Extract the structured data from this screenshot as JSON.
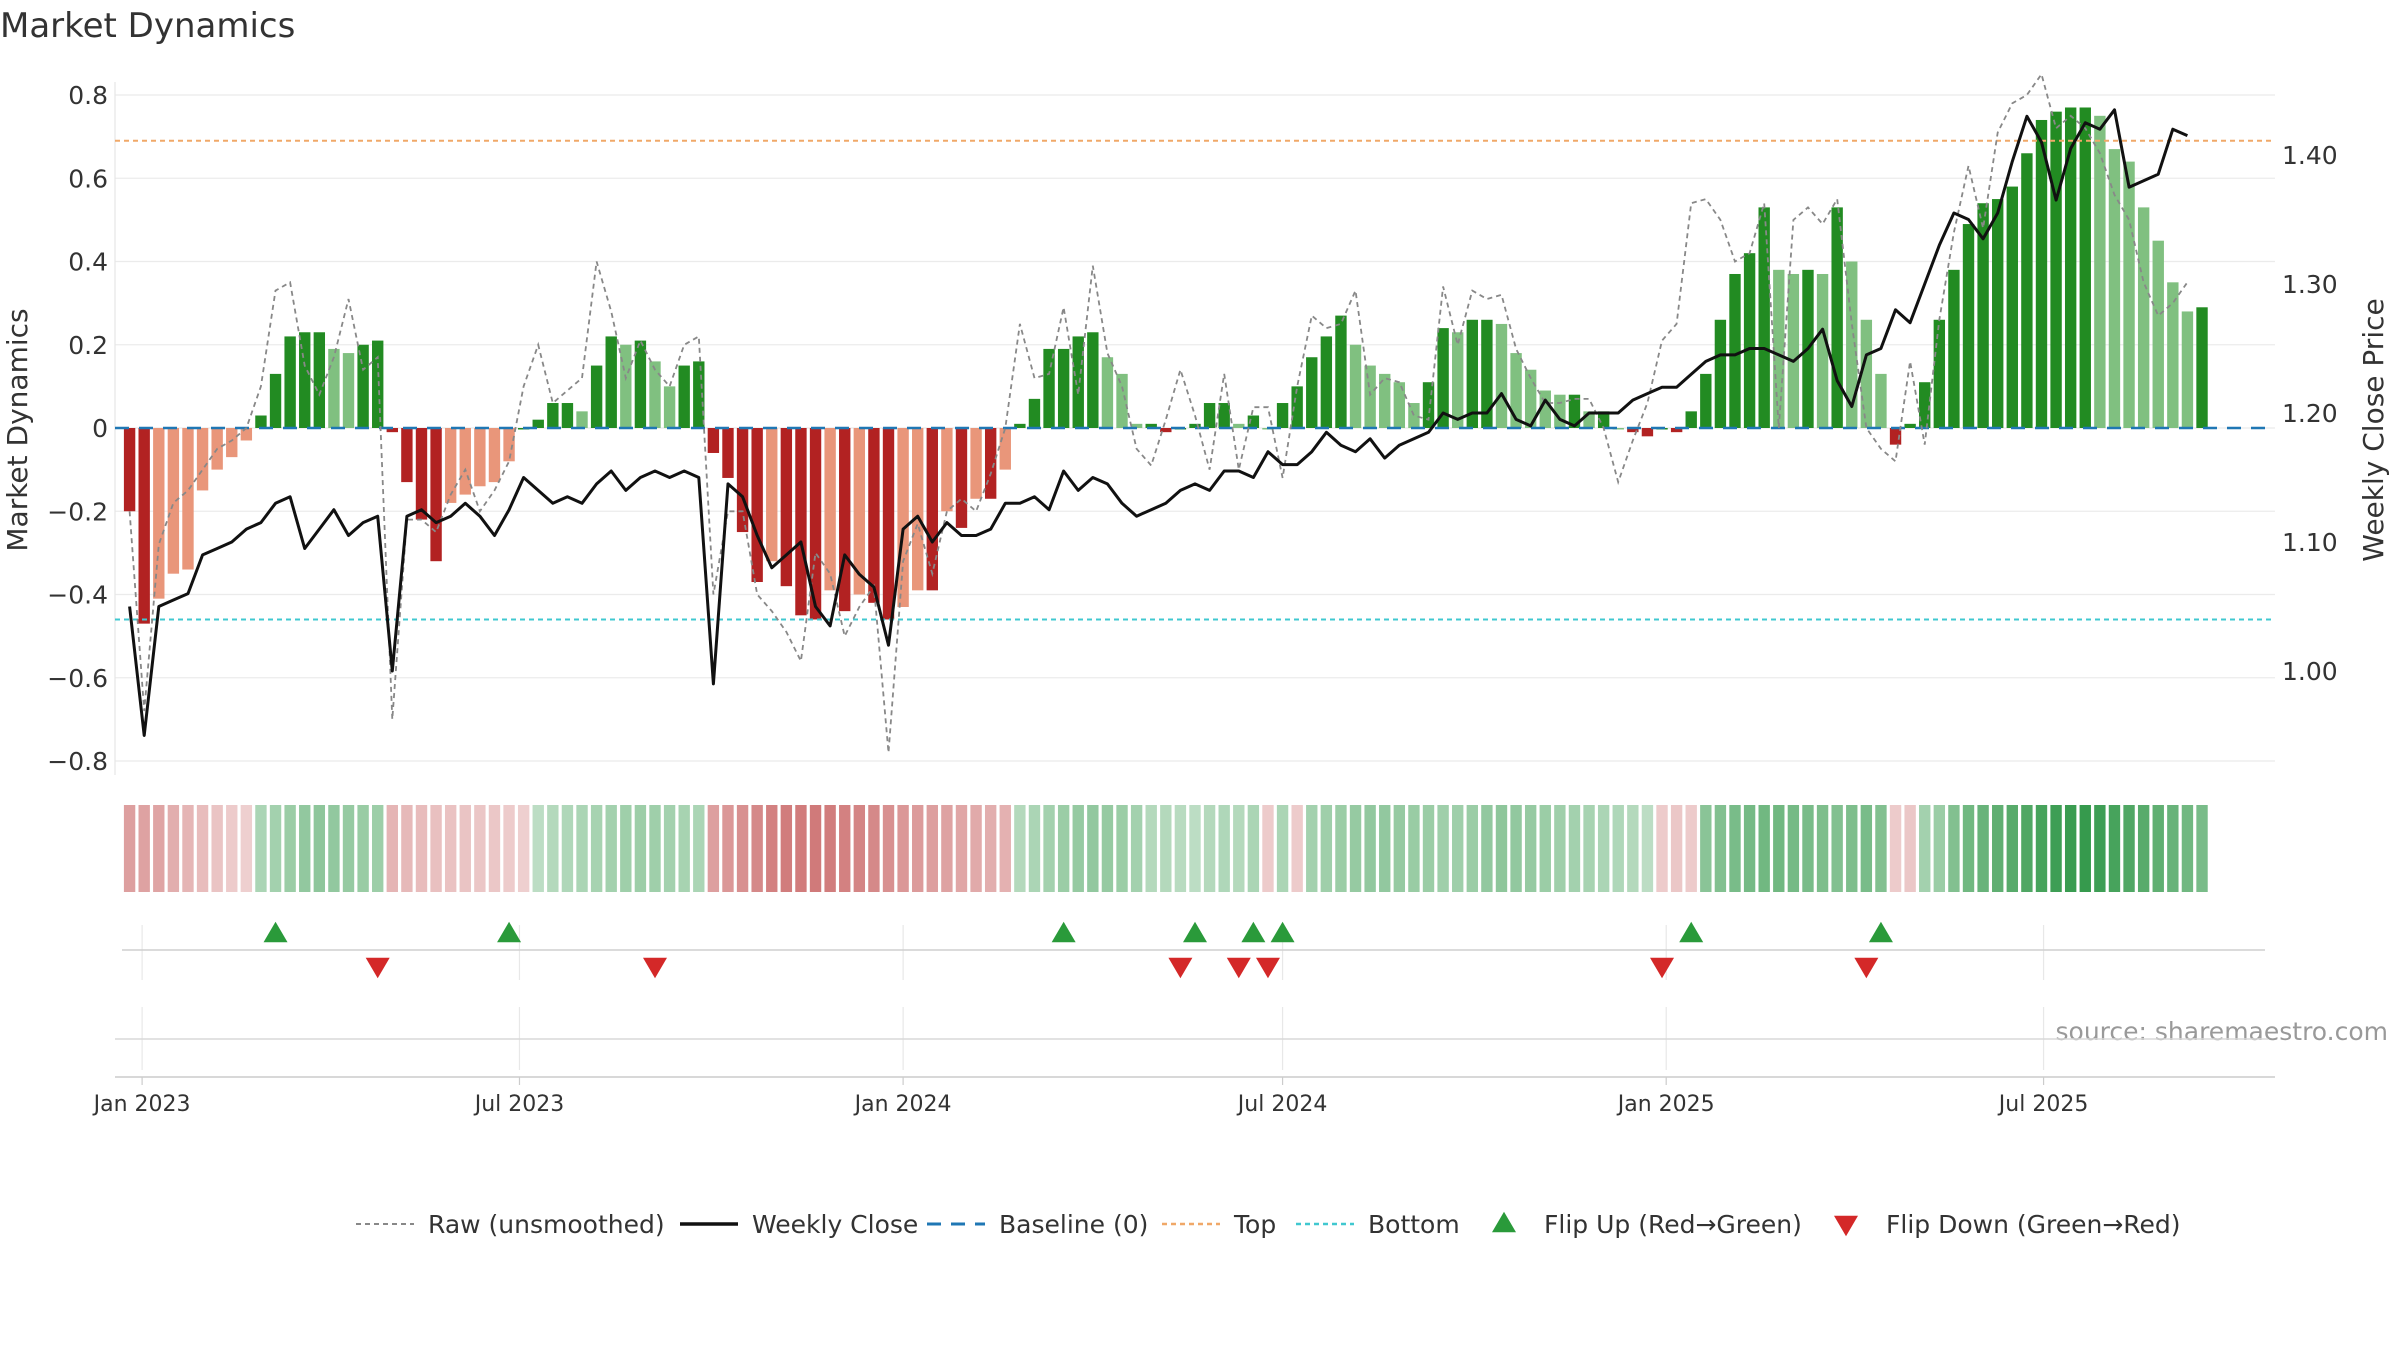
{
  "chart_data": {
    "type": "bar",
    "title": "Market Dynamics",
    "ylabel": "Market Dynamics",
    "ylabel_right": "Weekly Close Price",
    "ylim": [
      -0.8,
      0.8
    ],
    "ylim_right": [
      0.93,
      1.47
    ],
    "yticks": [
      "0.8",
      "0.6",
      "0.4",
      "0.2",
      "0",
      "−0.2",
      "−0.4",
      "−0.6",
      "−0.8"
    ],
    "yticks_right": [
      "1.40",
      "1.30",
      "1.20",
      "1.10",
      "1.00"
    ],
    "xticks": [
      "Jan 2023",
      "Jul 2023",
      "Jan 2024",
      "Jul 2024",
      "Jan 2025",
      "Jul 2025"
    ],
    "x_range": [
      "2022-12-19",
      "2025-10-20"
    ],
    "grid": true,
    "source": "source: sharemaestro.com",
    "top_level": 0.69,
    "bottom_level": -0.46,
    "legend": [
      "Raw (unsmoothed)",
      "Weekly Close",
      "Baseline (0)",
      "Top",
      "Bottom",
      "Flip Up (Red→Green)",
      "Flip Down (Green→Red)"
    ],
    "legend_position": "bottom",
    "colors": {
      "strong_green": "#228b22",
      "light_green": "#80c080",
      "strong_red": "#b22222",
      "light_red": "#e9967a",
      "raw": "#888888",
      "close": "#111111",
      "baseline": "#1f77b4",
      "top": "#f0a868",
      "bottom": "#40c8d0",
      "flip_up": "#2a9a3a",
      "flip_down": "#d42828"
    },
    "start_date": "2022-12-26",
    "dynamics": [
      -0.2,
      -0.47,
      -0.41,
      -0.35,
      -0.34,
      -0.15,
      -0.1,
      -0.07,
      -0.03,
      0.03,
      0.13,
      0.22,
      0.23,
      0.23,
      0.19,
      0.18,
      0.2,
      0.21,
      -0.01,
      -0.13,
      -0.22,
      -0.32,
      -0.18,
      -0.16,
      -0.14,
      -0.13,
      -0.08,
      0.0,
      0.02,
      0.06,
      0.06,
      0.04,
      0.15,
      0.22,
      0.2,
      0.21,
      0.16,
      0.1,
      0.15,
      0.16,
      -0.06,
      -0.12,
      -0.25,
      -0.37,
      -0.32,
      -0.38,
      -0.45,
      -0.46,
      -0.39,
      -0.44,
      -0.4,
      -0.42,
      -0.46,
      -0.43,
      -0.39,
      -0.39,
      -0.2,
      -0.24,
      -0.17,
      -0.17,
      -0.1,
      0.01,
      0.07,
      0.19,
      0.19,
      0.22,
      0.23,
      0.17,
      0.13,
      0.01,
      0.01,
      -0.01,
      0.0,
      0.01,
      0.06,
      0.06,
      0.01,
      0.03,
      0.0,
      0.06,
      0.1,
      0.17,
      0.22,
      0.27,
      0.2,
      0.15,
      0.13,
      0.11,
      0.06,
      0.11,
      0.24,
      0.23,
      0.26,
      0.26,
      0.25,
      0.18,
      0.14,
      0.09,
      0.08,
      0.08,
      0.04,
      0.04,
      0.0,
      -0.01,
      -0.02,
      0.0,
      -0.01,
      0.04,
      0.13,
      0.26,
      0.37,
      0.42,
      0.53,
      0.38,
      0.37,
      0.38,
      0.37,
      0.53,
      0.4,
      0.26,
      0.13,
      -0.04,
      0.01,
      0.11,
      0.26,
      0.38,
      0.49,
      0.54,
      0.55,
      0.58,
      0.66,
      0.74,
      0.76,
      0.77,
      0.77,
      0.75,
      0.67,
      0.64,
      0.53,
      0.45,
      0.35,
      0.28,
      0.29
    ],
    "raw": [
      -0.2,
      -0.68,
      -0.28,
      -0.18,
      -0.15,
      -0.1,
      -0.05,
      -0.03,
      0.0,
      0.1,
      0.33,
      0.35,
      0.15,
      0.08,
      0.17,
      0.31,
      0.14,
      0.17,
      -0.7,
      -0.22,
      -0.22,
      -0.25,
      -0.16,
      -0.1,
      -0.2,
      -0.15,
      -0.08,
      0.1,
      0.2,
      0.06,
      0.09,
      0.12,
      0.4,
      0.28,
      0.12,
      0.21,
      0.14,
      0.1,
      0.2,
      0.22,
      -0.4,
      -0.2,
      -0.2,
      -0.4,
      -0.44,
      -0.49,
      -0.56,
      -0.3,
      -0.35,
      -0.5,
      -0.43,
      -0.38,
      -0.78,
      -0.32,
      -0.23,
      -0.35,
      -0.2,
      -0.17,
      -0.2,
      -0.11,
      0.0,
      0.25,
      0.12,
      0.13,
      0.29,
      0.08,
      0.39,
      0.18,
      0.1,
      -0.05,
      -0.09,
      0.02,
      0.14,
      0.03,
      -0.1,
      0.13,
      -0.1,
      0.05,
      0.05,
      -0.12,
      0.1,
      0.27,
      0.24,
      0.25,
      0.33,
      0.08,
      0.12,
      0.11,
      0.03,
      0.02,
      0.34,
      0.2,
      0.33,
      0.31,
      0.32,
      0.19,
      0.12,
      0.06,
      0.06,
      0.07,
      0.07,
      0.0,
      -0.13,
      -0.03,
      0.06,
      0.21,
      0.25,
      0.54,
      0.55,
      0.5,
      0.4,
      0.42,
      0.54,
      0.0,
      0.5,
      0.53,
      0.49,
      0.55,
      0.25,
      0.0,
      -0.05,
      -0.08,
      0.16,
      -0.04,
      0.26,
      0.47,
      0.63,
      0.48,
      0.71,
      0.78,
      0.8,
      0.85,
      0.72,
      0.75,
      0.72,
      0.66,
      0.56,
      0.5,
      0.35,
      0.27,
      0.3,
      0.35
    ],
    "close": [
      1.05,
      0.95,
      1.05,
      1.055,
      1.06,
      1.09,
      1.095,
      1.1,
      1.11,
      1.115,
      1.13,
      1.135,
      1.095,
      1.11,
      1.125,
      1.105,
      1.115,
      1.12,
      1.0,
      1.12,
      1.125,
      1.115,
      1.12,
      1.13,
      1.12,
      1.105,
      1.125,
      1.15,
      1.14,
      1.13,
      1.135,
      1.13,
      1.145,
      1.155,
      1.14,
      1.15,
      1.155,
      1.15,
      1.155,
      1.15,
      0.99,
      1.145,
      1.135,
      1.105,
      1.08,
      1.09,
      1.1,
      1.05,
      1.035,
      1.09,
      1.075,
      1.065,
      1.02,
      1.11,
      1.12,
      1.1,
      1.115,
      1.105,
      1.105,
      1.11,
      1.13,
      1.13,
      1.135,
      1.125,
      1.155,
      1.14,
      1.15,
      1.145,
      1.13,
      1.12,
      1.125,
      1.13,
      1.14,
      1.145,
      1.14,
      1.155,
      1.155,
      1.15,
      1.17,
      1.16,
      1.16,
      1.17,
      1.185,
      1.175,
      1.17,
      1.18,
      1.165,
      1.175,
      1.18,
      1.185,
      1.2,
      1.195,
      1.2,
      1.2,
      1.215,
      1.195,
      1.19,
      1.21,
      1.195,
      1.19,
      1.2,
      1.2,
      1.2,
      1.21,
      1.215,
      1.22,
      1.22,
      1.23,
      1.24,
      1.245,
      1.245,
      1.25,
      1.25,
      1.245,
      1.24,
      1.25,
      1.265,
      1.225,
      1.205,
      1.245,
      1.25,
      1.28,
      1.27,
      1.3,
      1.33,
      1.355,
      1.35,
      1.335,
      1.355,
      1.395,
      1.43,
      1.41,
      1.365,
      1.405,
      1.425,
      1.42,
      1.435,
      1.375,
      1.38,
      1.385,
      1.42,
      1.415
    ],
    "heat": [
      -0.4,
      -0.38,
      -0.36,
      -0.3,
      -0.25,
      -0.2,
      -0.15,
      -0.1,
      -0.08,
      0.25,
      0.3,
      0.35,
      0.4,
      0.42,
      0.4,
      0.38,
      0.36,
      0.34,
      -0.25,
      -0.22,
      -0.2,
      -0.18,
      -0.16,
      -0.15,
      -0.14,
      -0.12,
      -0.1,
      -0.08,
      0.15,
      0.2,
      0.22,
      0.25,
      0.28,
      0.3,
      0.32,
      0.34,
      0.32,
      0.3,
      0.28,
      0.25,
      -0.4,
      -0.45,
      -0.5,
      -0.55,
      -0.6,
      -0.62,
      -0.64,
      -0.65,
      -0.63,
      -0.6,
      -0.58,
      -0.55,
      -0.5,
      -0.45,
      -0.42,
      -0.4,
      -0.38,
      -0.35,
      -0.32,
      -0.3,
      -0.28,
      0.2,
      0.25,
      0.3,
      0.35,
      0.38,
      0.4,
      0.38,
      0.35,
      0.3,
      0.2,
      0.2,
      0.18,
      0.15,
      0.2,
      0.22,
      0.2,
      0.25,
      -0.1,
      0.25,
      -0.1,
      0.3,
      0.32,
      0.35,
      0.38,
      0.4,
      0.4,
      0.38,
      0.36,
      0.35,
      0.33,
      0.32,
      0.35,
      0.4,
      0.42,
      0.4,
      0.38,
      0.35,
      0.32,
      0.3,
      0.28,
      0.25,
      0.22,
      0.2,
      0.15,
      -0.1,
      -0.12,
      -0.1,
      0.45,
      0.5,
      0.55,
      0.58,
      0.6,
      0.6,
      0.58,
      0.55,
      0.52,
      0.5,
      0.52,
      0.55,
      0.5,
      -0.1,
      -0.12,
      0.3,
      0.35,
      0.5,
      0.6,
      0.65,
      0.7,
      0.75,
      0.8,
      0.85,
      0.9,
      0.92,
      0.95,
      0.9,
      0.85,
      0.8,
      0.75,
      0.7,
      0.65,
      0.6,
      0.55
    ],
    "flip_up": [
      "2023-03-06",
      "2023-06-26",
      "2024-03-18",
      "2024-05-20",
      "2024-06-17",
      "2024-07-01",
      "2025-01-13",
      "2025-04-14"
    ],
    "flip_down": [
      "2023-04-24",
      "2023-09-04",
      "2024-05-13",
      "2024-06-10",
      "2024-06-24",
      "2024-12-30",
      "2025-04-07"
    ]
  }
}
